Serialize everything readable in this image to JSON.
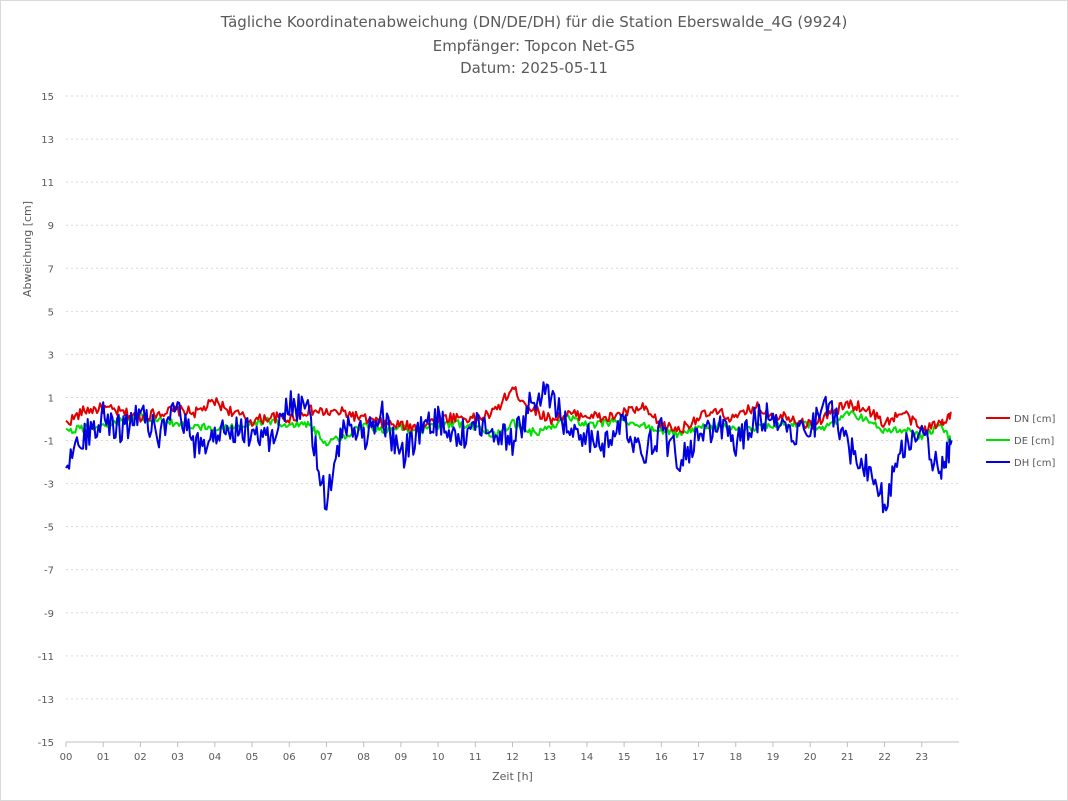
{
  "chart_data": {
    "type": "line",
    "title": "Tägliche Koordinatenabweichung (DN/DE/DH) für die Station Eberswalde_4G (9924)",
    "subtitle": "Empfänger: Topcon Net-G5",
    "date_line": "Datum: 2025-05-11",
    "xlabel": "Zeit [h]",
    "ylabel": "Abweichung [cm]",
    "xlim": [
      0,
      24
    ],
    "ylim": [
      -15,
      15
    ],
    "x_ticks": [
      "00",
      "01",
      "02",
      "03",
      "04",
      "05",
      "06",
      "07",
      "08",
      "09",
      "10",
      "11",
      "12",
      "13",
      "14",
      "15",
      "16",
      "17",
      "18",
      "19",
      "20",
      "21",
      "22",
      "23"
    ],
    "y_ticks": [
      15,
      13,
      11,
      9,
      7,
      5,
      3,
      1,
      -1,
      -3,
      -5,
      -7,
      -9,
      -11,
      -13,
      -15
    ],
    "grid": "horizontal dotted",
    "legend_position": "right",
    "x_hours": [
      0,
      0.5,
      1,
      1.5,
      2,
      2.5,
      3,
      3.5,
      4,
      4.5,
      5,
      5.5,
      6,
      6.5,
      7,
      7.5,
      8,
      8.5,
      9,
      9.5,
      10,
      10.5,
      11,
      11.5,
      12,
      12.5,
      13,
      13.5,
      14,
      14.5,
      15,
      15.5,
      16,
      16.5,
      17,
      17.5,
      18,
      18.5,
      19,
      19.5,
      20,
      20.5,
      21,
      21.5,
      22,
      22.5,
      23,
      23.5,
      23.8
    ],
    "series": [
      {
        "name": "DN [cm]",
        "color": "#e00000",
        "values": [
          -0.2,
          0.4,
          0.5,
          0.3,
          0.1,
          0.3,
          0.4,
          0.3,
          0.8,
          0.3,
          -0.1,
          0.1,
          0.0,
          0.4,
          0.3,
          0.3,
          0.0,
          -0.2,
          -0.3,
          -0.4,
          0.0,
          0.1,
          0.0,
          0.3,
          1.4,
          0.5,
          0.0,
          0.2,
          0.2,
          0.0,
          0.3,
          0.5,
          -0.3,
          -0.5,
          0.1,
          0.3,
          0.0,
          0.6,
          0.2,
          0.1,
          -0.3,
          0.2,
          0.7,
          0.5,
          -0.2,
          0.3,
          -0.5,
          -0.2,
          0.3
        ]
      },
      {
        "name": "DE [cm]",
        "color": "#00e000",
        "values": [
          -0.6,
          -0.4,
          -0.3,
          -0.1,
          0.1,
          -0.1,
          -0.2,
          -0.3,
          -0.5,
          -0.4,
          -0.2,
          -0.1,
          -0.3,
          -0.2,
          -1.1,
          -0.8,
          -0.3,
          -0.5,
          -0.4,
          -0.6,
          -0.3,
          -0.2,
          -0.4,
          -0.7,
          -0.2,
          -0.6,
          -0.5,
          0.1,
          -0.3,
          -0.2,
          -0.1,
          -0.3,
          -0.6,
          -0.7,
          -0.4,
          -0.3,
          -0.5,
          -0.4,
          -0.3,
          -0.2,
          -0.3,
          -0.4,
          0.3,
          0.0,
          -0.6,
          -0.5,
          -0.8,
          -0.3,
          -1.1
        ]
      },
      {
        "name": "DH [cm]",
        "color": "#0000e0",
        "values": [
          -1.9,
          -0.8,
          0.2,
          -0.6,
          0.6,
          -0.9,
          0.4,
          -1.4,
          -0.7,
          -0.4,
          -0.6,
          -0.9,
          0.8,
          0.2,
          -3.8,
          -0.2,
          -0.8,
          0.2,
          -1.8,
          -0.6,
          -0.1,
          -0.9,
          -0.3,
          -0.5,
          -1.1,
          0.7,
          1.2,
          -0.4,
          -0.8,
          -1.2,
          -0.2,
          -1.5,
          -0.6,
          -1.9,
          -0.9,
          -0.3,
          -1.1,
          -0.1,
          0.3,
          -0.6,
          -0.4,
          0.7,
          -1.3,
          -2.1,
          -3.9,
          -1.2,
          -0.4,
          -2.7,
          -1.0
        ]
      }
    ]
  }
}
